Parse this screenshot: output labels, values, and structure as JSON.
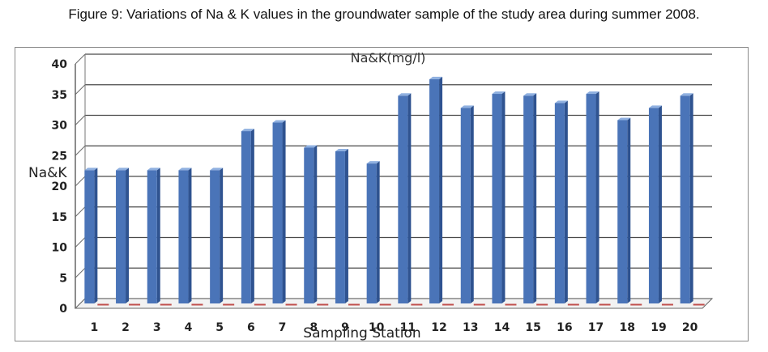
{
  "figure_caption": "Figure 9: Variations of  Na & K values in the groundwater sample of the study area during summer 2008.",
  "chart_data": {
    "type": "bar",
    "title": "Na&K(mg/l)",
    "xlabel": "Sampling Station",
    "ylabel": "Na&K",
    "ylim": [
      0,
      40
    ],
    "yticks": [
      0,
      5,
      10,
      15,
      20,
      25,
      30,
      35,
      40
    ],
    "grid": true,
    "categories": [
      "1",
      "2",
      "3",
      "4",
      "5",
      "6",
      "7",
      "8",
      "9",
      "10",
      "11",
      "12",
      "13",
      "14",
      "15",
      "16",
      "17",
      "18",
      "19",
      "20"
    ],
    "series": [
      {
        "color": "#4a74b8",
        "values": [
          21.8,
          21.8,
          21.8,
          21.8,
          21.8,
          28.2,
          29.6,
          25.5,
          24.9,
          22.9,
          34,
          36.7,
          32,
          34.3,
          34,
          32.8,
          34.3,
          30,
          32,
          34
        ]
      },
      {
        "color": "#c0504d",
        "values": [
          0.2,
          0.2,
          0.2,
          0.2,
          0.2,
          0.2,
          0.2,
          0.2,
          0.2,
          0.2,
          0.2,
          0.2,
          0.2,
          0.2,
          0.2,
          0.2,
          0.2,
          0.2,
          0.2,
          0.2
        ]
      }
    ]
  }
}
